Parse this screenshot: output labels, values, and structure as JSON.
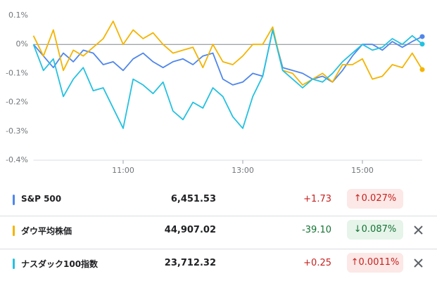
{
  "chart_data": {
    "type": "line",
    "x": [
      9.5,
      9.667,
      9.833,
      10,
      10.167,
      10.333,
      10.5,
      10.667,
      10.833,
      11,
      11.167,
      11.333,
      11.5,
      11.667,
      11.833,
      12,
      12.167,
      12.333,
      12.5,
      12.667,
      12.833,
      13,
      13.167,
      13.333,
      13.5,
      13.667,
      13.833,
      14,
      14.167,
      14.333,
      14.5,
      14.667,
      14.833,
      15,
      15.167,
      15.333,
      15.5,
      15.667,
      15.833,
      16
    ],
    "xlim": [
      9.5,
      16
    ],
    "xticks": [
      {
        "value": 11,
        "label": "11:00"
      },
      {
        "value": 13,
        "label": "13:00"
      },
      {
        "value": 15,
        "label": "15:00"
      }
    ],
    "ylim": [
      -0.4,
      0.1
    ],
    "yticks": [
      {
        "value": 0.1,
        "label": "0.1%"
      },
      {
        "value": 0,
        "label": "0%"
      },
      {
        "value": -0.1,
        "label": "-0.1%"
      },
      {
        "value": -0.2,
        "label": "-0.2%"
      },
      {
        "value": -0.3,
        "label": "-0.3%"
      },
      {
        "value": -0.4,
        "label": "-0.4%"
      }
    ],
    "series": [
      {
        "name": "S&P 500",
        "color": "#4f86ec",
        "values": [
          0.0,
          -0.04,
          -0.08,
          -0.03,
          -0.06,
          -0.02,
          -0.03,
          -0.07,
          -0.06,
          -0.09,
          -0.05,
          -0.03,
          -0.06,
          -0.08,
          -0.06,
          -0.05,
          -0.07,
          -0.04,
          -0.03,
          -0.12,
          -0.14,
          -0.13,
          -0.1,
          -0.11,
          0.05,
          -0.08,
          -0.09,
          -0.1,
          -0.12,
          -0.11,
          -0.13,
          -0.09,
          -0.04,
          0.0,
          0.0,
          -0.02,
          0.01,
          -0.01,
          0.01,
          0.027
        ]
      },
      {
        "name": "ダウ平均株価",
        "color": "#f4b400",
        "values": [
          0.03,
          -0.04,
          0.05,
          -0.09,
          -0.02,
          -0.04,
          -0.01,
          0.02,
          0.08,
          0.0,
          0.05,
          0.02,
          0.04,
          0.0,
          -0.03,
          -0.02,
          -0.01,
          -0.08,
          0.0,
          -0.06,
          -0.07,
          -0.04,
          0.0,
          0.0,
          0.06,
          -0.09,
          -0.1,
          -0.14,
          -0.12,
          -0.1,
          -0.13,
          -0.07,
          -0.07,
          -0.05,
          -0.12,
          -0.11,
          -0.07,
          -0.08,
          -0.03,
          -0.087
        ]
      },
      {
        "name": "ナスダック100指数",
        "color": "#24c1e0",
        "values": [
          0.0,
          -0.09,
          -0.05,
          -0.18,
          -0.12,
          -0.08,
          -0.16,
          -0.15,
          -0.22,
          -0.29,
          -0.12,
          -0.14,
          -0.17,
          -0.13,
          -0.23,
          -0.26,
          -0.2,
          -0.22,
          -0.15,
          -0.18,
          -0.25,
          -0.29,
          -0.18,
          -0.11,
          0.05,
          -0.09,
          -0.12,
          -0.15,
          -0.12,
          -0.13,
          -0.1,
          -0.06,
          -0.03,
          0.0,
          -0.02,
          -0.01,
          0.02,
          0.0,
          0.03,
          0.0011
        ]
      }
    ]
  },
  "quotes": [
    {
      "price": "6,451.53",
      "change": "+1.73",
      "percent": "↑0.027%",
      "trend": "up"
    },
    {
      "price": "44,907.02",
      "change": "-39.10",
      "percent": "↓0.087%",
      "trend": "down"
    },
    {
      "price": "23,712.32",
      "change": "+0.25",
      "percent": "↑0.0011%",
      "trend": "up"
    }
  ]
}
